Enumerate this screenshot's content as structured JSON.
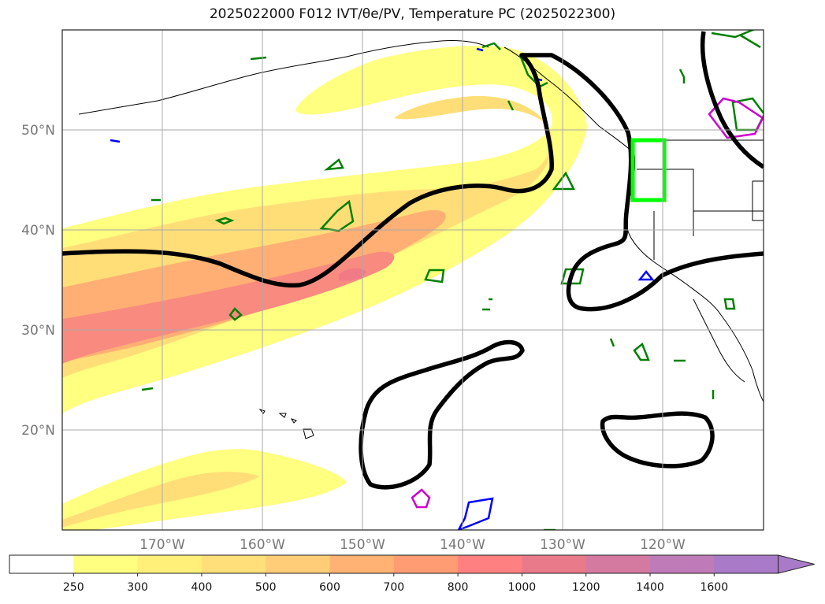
{
  "title": "2025022000 F012 IVT/θe/PV, Temperature PC (2025022300)",
  "map": {
    "lon_labels": [
      "170°W",
      "160°W",
      "150°W",
      "140°W",
      "130°W",
      "120°W"
    ],
    "lat_labels": [
      "50°N",
      "40°N",
      "30°N",
      "20°N"
    ]
  },
  "colorbar": {
    "levels": [
      "250",
      "300",
      "400",
      "500",
      "600",
      "700",
      "800",
      "1000",
      "1200",
      "1400",
      "1600"
    ],
    "colors": [
      "#ffffff",
      "#ffff80",
      "#fff07a",
      "#ffdf7a",
      "#ffcd78",
      "#ffb273",
      "#ff9c73",
      "#ff8080",
      "#e87a8a",
      "#d47aa0",
      "#bf7ab8",
      "#a87ac8"
    ],
    "extend": "max"
  },
  "colors": {
    "ivt_light": "#fff27a",
    "ivt_mid": "#ffd27a",
    "ivt_high": "#ffa070",
    "ivt_peak": "#f87f80",
    "temperature_pc": "#000000",
    "pv_contour": "#008000",
    "theta_e": "#0000ff",
    "magenta": "#cc00cc",
    "box": "#00ff00"
  }
}
